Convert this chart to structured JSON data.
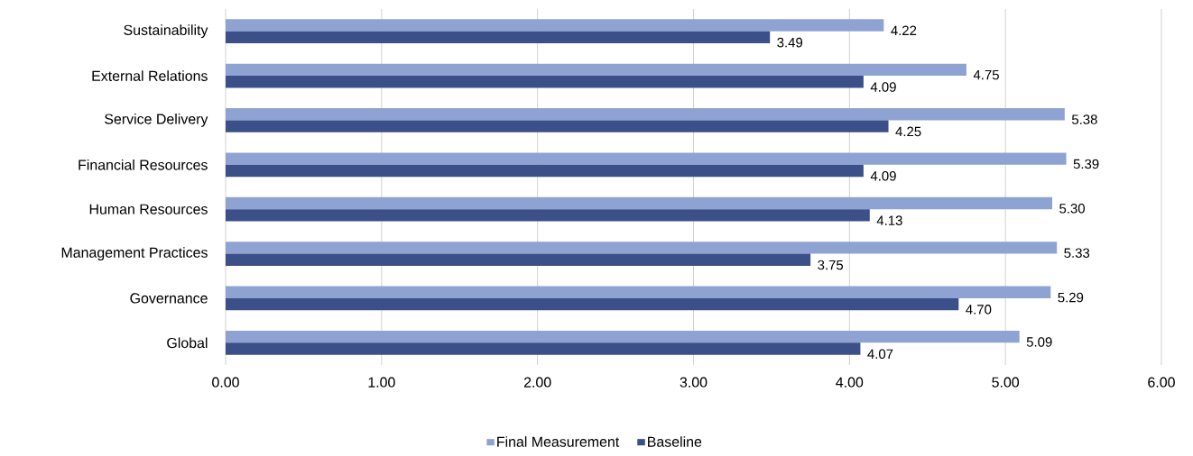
{
  "chart_data": {
    "type": "bar",
    "orientation": "horizontal",
    "categories": [
      "Sustainability",
      "External Relations",
      "Service Delivery",
      "Financial Resources",
      "Human Resources",
      "Management Practices",
      "Governance",
      "Global"
    ],
    "series": [
      {
        "name": "Final Measurement",
        "color": "#8fa3d3",
        "values": [
          4.22,
          4.75,
          5.38,
          5.39,
          5.3,
          5.33,
          5.29,
          5.09
        ],
        "value_labels": [
          "4.22",
          "4.75",
          "5.38",
          "5.39",
          "5.30",
          "5.33",
          "5.29",
          "5.09"
        ]
      },
      {
        "name": "Baseline",
        "color": "#3b4f88",
        "values": [
          3.49,
          4.09,
          4.25,
          4.09,
          4.13,
          3.75,
          4.7,
          4.07
        ],
        "value_labels": [
          "3.49",
          "4.09",
          "4.25",
          "4.09",
          "4.13",
          "3.75",
          "4.70",
          "4.07"
        ]
      }
    ],
    "xlim": [
      0,
      6
    ],
    "xticks": [
      {
        "value": 0,
        "label": "0.00"
      },
      {
        "value": 1,
        "label": "1.00"
      },
      {
        "value": 2,
        "label": "2.00"
      },
      {
        "value": 3,
        "label": "3.00"
      },
      {
        "value": 4,
        "label": "4.00"
      },
      {
        "value": 5,
        "label": "5.00"
      },
      {
        "value": 6,
        "label": "6.00"
      }
    ],
    "grid": "x",
    "legend": "bottom"
  }
}
